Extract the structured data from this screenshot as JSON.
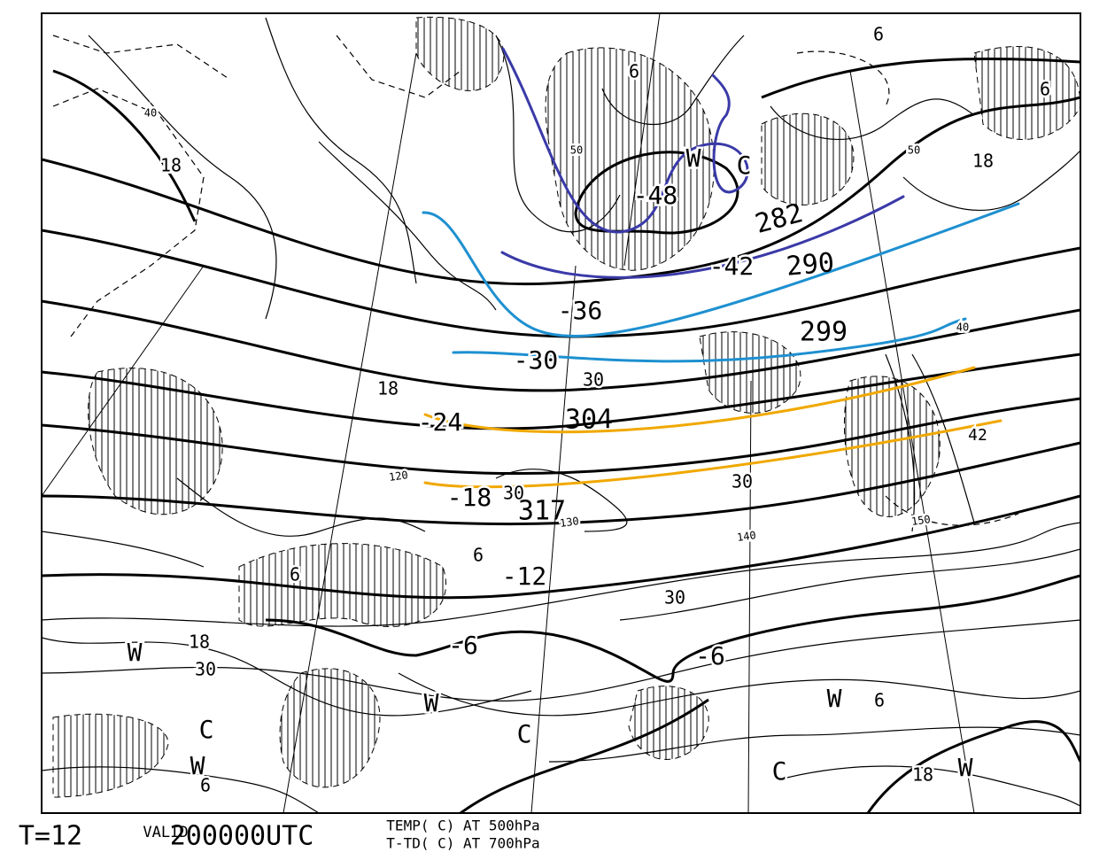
{
  "footer": {
    "step": "T=12",
    "valid_label": "VALID",
    "valid_time": "200000UTC",
    "fields": [
      "TEMP( C) AT 500hPa",
      "T-TD( C) AT 700hPa"
    ]
  },
  "labels": {
    "temperature": [
      "-48",
      "-42",
      "-36",
      "-30",
      "-24",
      "-18",
      "-12",
      "-6",
      "-6"
    ],
    "moisture": [
      "18",
      "18",
      "18",
      "18",
      "18",
      "30",
      "30",
      "30",
      "30",
      "30",
      "6",
      "6",
      "6",
      "6",
      "6",
      "6",
      "6",
      "40",
      "50",
      "40",
      "50",
      "42"
    ],
    "centers": [
      "W",
      "C",
      "W",
      "W",
      "W",
      "W",
      "W",
      "C",
      "C",
      "C"
    ],
    "handwritten": [
      "282",
      "290",
      "299",
      "304",
      "317"
    ],
    "longitude": [
      "120",
      "130",
      "140",
      "150"
    ]
  }
}
